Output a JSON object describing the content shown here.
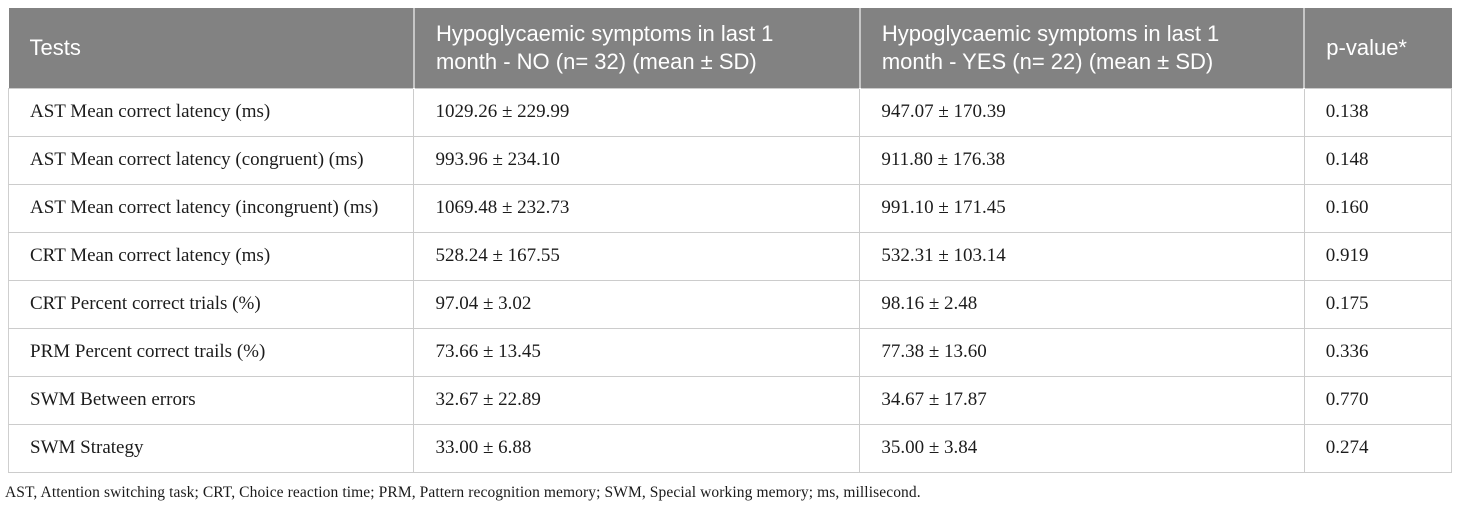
{
  "table": {
    "columns": [
      {
        "label": "Tests"
      },
      {
        "label": "Hypoglycaemic symptoms in last 1 month - NO (n= 32) (mean ± SD)"
      },
      {
        "label": "Hypoglycaemic symptoms in last 1 month - YES (n= 22) (mean ± SD)"
      },
      {
        "label": "p-value*"
      }
    ],
    "rows": [
      {
        "test": "AST Mean correct latency (ms)",
        "no_group": "1029.26 ± 229.99",
        "yes_group": "947.07 ± 170.39",
        "p_value": "0.138"
      },
      {
        "test": "AST Mean correct latency (congruent) (ms)",
        "no_group": "993.96 ± 234.10",
        "yes_group": "911.80 ± 176.38",
        "p_value": "0.148"
      },
      {
        "test": "AST Mean correct latency (incongruent) (ms)",
        "no_group": "1069.48 ± 232.73",
        "yes_group": "991.10 ± 171.45",
        "p_value": "0.160"
      },
      {
        "test": "CRT Mean correct latency (ms)",
        "no_group": "528.24 ± 167.55",
        "yes_group": "532.31 ± 103.14",
        "p_value": "0.919"
      },
      {
        "test": "CRT Percent correct trials (%)",
        "no_group": "97.04 ± 3.02",
        "yes_group": "98.16 ± 2.48",
        "p_value": "0.175"
      },
      {
        "test": "PRM Percent correct trails (%)",
        "no_group": "73.66 ± 13.45",
        "yes_group": "77.38 ± 13.60",
        "p_value": "0.336"
      },
      {
        "test": "SWM Between errors",
        "no_group": "32.67 ± 22.89",
        "yes_group": "34.67 ± 17.87",
        "p_value": "0.770"
      },
      {
        "test": "SWM Strategy",
        "no_group": "33.00 ± 6.88",
        "yes_group": "35.00 ± 3.84",
        "p_value": "0.274"
      }
    ],
    "footnote": "AST, Attention switching task; CRT, Choice reaction time; PRM, Pattern recognition memory; SWM, Special working memory; ms, millisecond."
  },
  "colors": {
    "header_bg": "#828282",
    "header_text": "#ffffff",
    "body_border": "#cccccc",
    "body_text": "#1c1c1c"
  }
}
